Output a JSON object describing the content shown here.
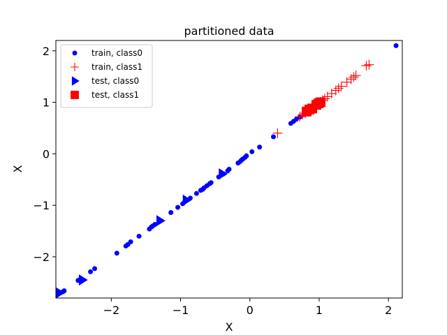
{
  "chart_data": {
    "type": "scatter",
    "title": "partitioned data",
    "xlabel": "X",
    "ylabel": "X",
    "xlim": [
      -2.8,
      2.2
    ],
    "ylim": [
      -2.8,
      2.2
    ],
    "xticks": [
      -2,
      -1,
      0,
      1,
      2
    ],
    "yticks": [
      -2,
      -1,
      0,
      1,
      2
    ],
    "xtick_labels": [
      "−2",
      "−1",
      "0",
      "1",
      "2"
    ],
    "ytick_labels": [
      "−2",
      "−1",
      "0",
      "1",
      "2"
    ],
    "grid": false,
    "legend_position": "upper-left",
    "series": [
      {
        "name": "train, class0",
        "marker": "circle",
        "color": "#0000ff",
        "x": [
          -2.76,
          -2.7,
          -2.68,
          -2.48,
          -2.45,
          -2.3,
          -2.24,
          -1.92,
          -1.79,
          -1.76,
          -1.72,
          -1.6,
          -1.45,
          -1.42,
          -1.4,
          -1.37,
          -1.14,
          -1.04,
          -0.97,
          -0.94,
          -0.91,
          -0.86,
          -0.77,
          -0.71,
          -0.68,
          -0.66,
          -0.62,
          -0.58,
          -0.56,
          -0.45,
          -0.38,
          -0.32,
          -0.3,
          -0.17,
          -0.14,
          -0.12,
          -0.1,
          -0.07,
          -0.05,
          0.03,
          0.14,
          0.34,
          0.59,
          0.63,
          0.67,
          0.72,
          0.78,
          0.8,
          0.85,
          0.87,
          0.9,
          2.11
        ],
        "y": [
          -2.71,
          -2.68,
          -2.66,
          -2.46,
          -2.44,
          -2.29,
          -2.23,
          -1.93,
          -1.79,
          -1.76,
          -1.71,
          -1.6,
          -1.46,
          -1.42,
          -1.4,
          -1.37,
          -1.14,
          -1.04,
          -0.97,
          -0.93,
          -0.9,
          -0.86,
          -0.77,
          -0.71,
          -0.69,
          -0.66,
          -0.62,
          -0.58,
          -0.56,
          -0.45,
          -0.39,
          -0.33,
          -0.3,
          -0.18,
          -0.15,
          -0.12,
          -0.1,
          -0.07,
          -0.04,
          0.04,
          0.13,
          0.33,
          0.59,
          0.63,
          0.67,
          0.71,
          0.77,
          0.8,
          0.85,
          0.86,
          0.89,
          2.1
        ]
      },
      {
        "name": "train, class1",
        "marker": "plus",
        "color": "#ff0000",
        "x": [
          0.4,
          0.72,
          0.76,
          0.8,
          0.84,
          0.88,
          0.92,
          0.95,
          0.98,
          1.02,
          1.05,
          1.08,
          1.12,
          1.18,
          1.24,
          1.28,
          1.32,
          1.4,
          1.46,
          1.5,
          1.53,
          1.68,
          1.72
        ],
        "y": [
          0.4,
          0.72,
          0.76,
          0.79,
          0.83,
          0.87,
          0.91,
          0.94,
          0.97,
          1.01,
          1.04,
          1.07,
          1.11,
          1.17,
          1.23,
          1.27,
          1.31,
          1.39,
          1.45,
          1.49,
          1.52,
          1.71,
          1.73
        ]
      },
      {
        "name": "test, class0",
        "marker": "triangle-right",
        "color": "#0000ff",
        "x": [
          -2.75,
          -2.42,
          -1.3,
          -0.92,
          -0.4
        ],
        "y": [
          -2.7,
          -2.45,
          -1.3,
          -0.9,
          -0.39
        ]
      },
      {
        "name": "test, class1",
        "marker": "square",
        "color": "#ff0000",
        "x": [
          0.82,
          0.86,
          0.9,
          0.96,
          0.99,
          1.02
        ],
        "y": [
          0.82,
          0.86,
          0.88,
          0.95,
          0.98,
          1.0
        ]
      }
    ]
  }
}
